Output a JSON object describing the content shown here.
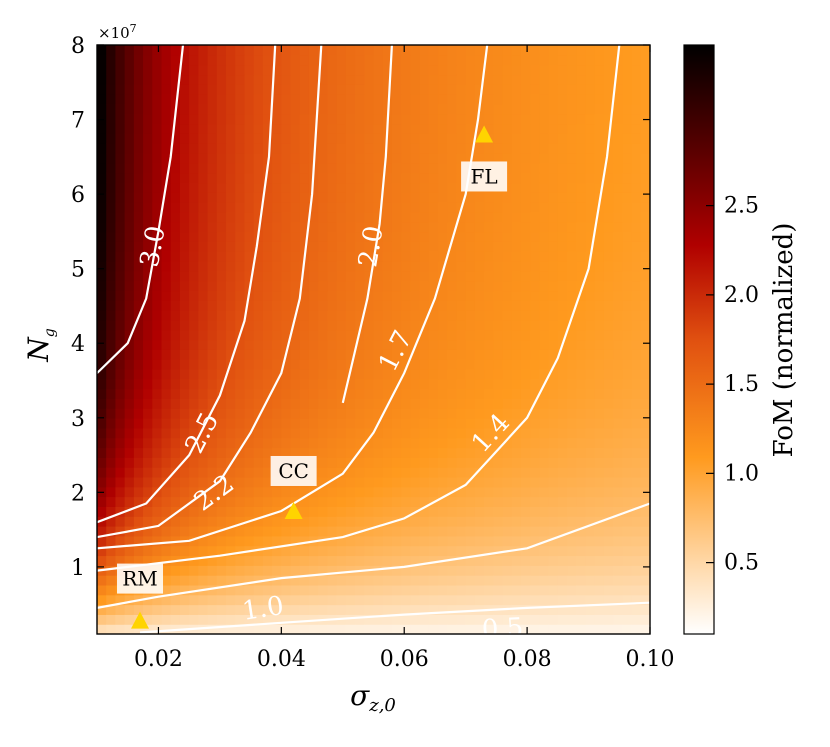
{
  "chart_data": {
    "type": "heatmap",
    "xlabel": "σ_{z,0}",
    "xlabel_main": "σ",
    "xlabel_sub": "z,0",
    "ylabel": "N_g",
    "ylabel_main": "N",
    "ylabel_sub": "g",
    "y_scale_note": "×10^7",
    "y_scale_base": "×10",
    "y_scale_exp": "7",
    "xlim": [
      0.01,
      0.1
    ],
    "ylim": [
      0.1,
      8.0
    ],
    "x_ticks": [
      "0.02",
      "0.04",
      "0.06",
      "0.08",
      "0.10"
    ],
    "x_tick_values": [
      0.02,
      0.04,
      0.06,
      0.08,
      0.1
    ],
    "y_ticks": [
      "1",
      "2",
      "3",
      "4",
      "5",
      "6",
      "7",
      "8"
    ],
    "y_tick_values": [
      1,
      2,
      3,
      4,
      5,
      6,
      7,
      8
    ],
    "colorbar": {
      "label": "FoM (normalized)",
      "range": [
        0.1,
        3.4
      ],
      "ticks": [
        "0.5",
        "1.0",
        "1.5",
        "2.0",
        "2.5"
      ],
      "tick_values": [
        0.5,
        1.0,
        1.5,
        2.0,
        2.5
      ],
      "colormap": "gist_heat_r"
    },
    "contours": [
      {
        "level_label": "0.5",
        "points": [
          [
            0.017,
            0.12
          ],
          [
            0.04,
            0.25
          ],
          [
            0.06,
            0.36
          ],
          [
            0.08,
            0.45
          ],
          [
            0.1,
            0.52
          ]
        ],
        "label_at": [
          0.076,
          0.18
        ]
      },
      {
        "level_label": "1.0",
        "points": [
          [
            0.01,
            0.45
          ],
          [
            0.02,
            0.6
          ],
          [
            0.04,
            0.85
          ],
          [
            0.06,
            1.0
          ],
          [
            0.08,
            1.25
          ],
          [
            0.1,
            1.85
          ]
        ],
        "label_at": [
          0.037,
          0.45
        ]
      },
      {
        "level_label": "1.4",
        "points": [
          [
            0.01,
            0.95
          ],
          [
            0.03,
            1.15
          ],
          [
            0.05,
            1.4
          ],
          [
            0.06,
            1.65
          ],
          [
            0.07,
            2.1
          ],
          [
            0.08,
            3.0
          ],
          [
            0.085,
            3.8
          ],
          [
            0.09,
            5.0
          ],
          [
            0.093,
            6.5
          ],
          [
            0.095,
            8.0
          ]
        ],
        "label_at": [
          0.074,
          2.8
        ]
      },
      {
        "level_label": "1.7",
        "points": [
          [
            0.01,
            1.25
          ],
          [
            0.025,
            1.35
          ],
          [
            0.04,
            1.75
          ],
          [
            0.05,
            2.25
          ],
          [
            0.055,
            2.8
          ],
          [
            0.06,
            3.6
          ],
          [
            0.065,
            4.6
          ],
          [
            0.07,
            6.0
          ],
          [
            0.072,
            7.0
          ],
          [
            0.0735,
            8.0
          ]
        ],
        "label_at": [
          0.0585,
          3.9
        ]
      },
      {
        "level_label": "2.0",
        "points": [
          [
            0.05,
            3.2
          ],
          [
            0.052,
            3.9
          ],
          [
            0.054,
            4.6
          ],
          [
            0.056,
            5.6
          ],
          [
            0.057,
            6.5
          ],
          [
            0.058,
            8.0
          ]
        ],
        "label_at": [
          0.0545,
          5.3
        ]
      },
      {
        "level_label": "2.2",
        "points": [
          [
            0.01,
            1.4
          ],
          [
            0.02,
            1.55
          ],
          [
            0.03,
            2.15
          ],
          [
            0.035,
            2.8
          ],
          [
            0.04,
            3.6
          ],
          [
            0.043,
            4.6
          ],
          [
            0.045,
            6.0
          ],
          [
            0.0465,
            8.0
          ]
        ],
        "label_at": [
          0.029,
          2.0
        ]
      },
      {
        "level_label": "2.5",
        "points": [
          [
            0.01,
            1.6
          ],
          [
            0.018,
            1.85
          ],
          [
            0.025,
            2.5
          ],
          [
            0.03,
            3.3
          ],
          [
            0.034,
            4.3
          ],
          [
            0.036,
            5.3
          ],
          [
            0.038,
            6.5
          ],
          [
            0.039,
            8.0
          ]
        ],
        "label_at": [
          0.027,
          2.8
        ]
      },
      {
        "level_label": "3.0",
        "points": [
          [
            0.01,
            3.6
          ],
          [
            0.015,
            4.0
          ],
          [
            0.018,
            4.6
          ],
          [
            0.02,
            5.5
          ],
          [
            0.022,
            6.5
          ],
          [
            0.024,
            8.0
          ]
        ],
        "label_at": [
          0.019,
          5.3
        ]
      }
    ],
    "markers": [
      {
        "name": "FL",
        "x": 0.073,
        "y": 6.8,
        "color": "#FFD400"
      },
      {
        "name": "CC",
        "x": 0.042,
        "y": 1.75,
        "color": "#FFD400"
      },
      {
        "name": "RM",
        "x": 0.017,
        "y": 0.28,
        "color": "#FFD400"
      }
    ]
  }
}
